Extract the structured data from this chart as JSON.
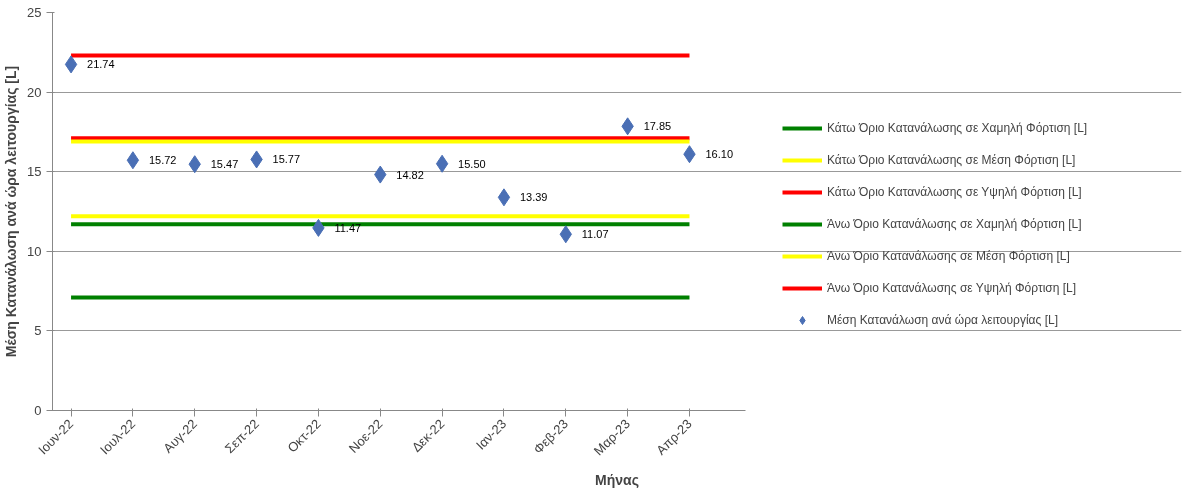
{
  "chart_data": {
    "type": "line",
    "xlabel": "Μήνας",
    "ylabel": "Μέση Κατανάλωση ανά ώρα λειτουργίας [L]",
    "categories": [
      "Ιουν-22",
      "Ιουλ-22",
      "Αυγ-22",
      "Σεπ-22",
      "Οκτ-22",
      "Νοε-22",
      "Δεκ-22",
      "Ιαν-23",
      "Φεβ-23",
      "Μαρ-23",
      "Απρ-23"
    ],
    "series": [
      {
        "name": "Κάτω Όριο Κατανάλωσης σε Χαμηλή Φόρτιση [L]",
        "color": "#008000",
        "values": [
          7.1,
          7.1,
          7.1,
          7.1,
          7.1,
          7.1,
          7.1,
          7.1,
          7.1,
          7.1,
          7.1
        ]
      },
      {
        "name": "Κάτω Όριο Κατανάλωσης σε Μέση Φόρτιση [L]",
        "color": "#ffff00",
        "values": [
          12.2,
          12.2,
          12.2,
          12.2,
          12.2,
          12.2,
          12.2,
          12.2,
          12.2,
          12.2,
          12.2
        ]
      },
      {
        "name": "Κάτω Όριο Κατανάλωσης σε Υψηλή Φόρτιση [L]",
        "color": "#ff0000",
        "values": [
          17.1,
          17.1,
          17.1,
          17.1,
          17.1,
          17.1,
          17.1,
          17.1,
          17.1,
          17.1,
          17.1
        ]
      },
      {
        "name": "Άνω Όριο Κατανάλωσης σε Χαμηλή Φόρτιση [L]",
        "color": "#008000",
        "values": [
          11.7,
          11.7,
          11.7,
          11.7,
          11.7,
          11.7,
          11.7,
          11.7,
          11.7,
          11.7,
          11.7
        ]
      },
      {
        "name": "Άνω Όριο Κατανάλωσης σε Μέση Φόρτιση [L]",
        "color": "#ffff00",
        "values": [
          16.9,
          16.9,
          16.9,
          16.9,
          16.9,
          16.9,
          16.9,
          16.9,
          16.9,
          16.9,
          16.9
        ]
      },
      {
        "name": "Άνω Όριο Κατανάλωσης σε Υψηλή Φόρτιση [L]",
        "color": "#ff0000",
        "values": [
          22.3,
          22.3,
          22.3,
          22.3,
          22.3,
          22.3,
          22.3,
          22.3,
          22.3,
          22.3,
          22.3
        ]
      },
      {
        "name": "Μέση Κατανάλωση ανά ώρα λειτουργίας [L]",
        "type": "scatter",
        "marker": "diamond",
        "color": "#4a6fb5",
        "values": [
          21.74,
          15.72,
          15.47,
          15.77,
          11.47,
          14.82,
          15.5,
          13.39,
          11.07,
          17.85,
          16.1
        ],
        "value_labels": [
          "21.74",
          "15.72",
          "15.47",
          "15.77",
          "11.47",
          "14.82",
          "15.50",
          "13.39",
          "11.07",
          "17.85",
          "16.10"
        ]
      }
    ],
    "ylim": [
      0,
      25
    ],
    "yticks": [
      0,
      5,
      10,
      15,
      20,
      25
    ],
    "grid": "y",
    "legend": "right"
  }
}
